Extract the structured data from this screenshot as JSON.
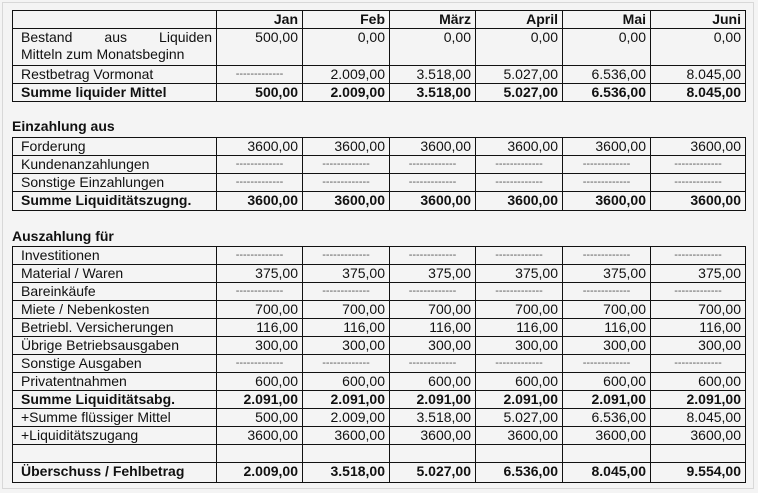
{
  "months": [
    "Jan",
    "Feb",
    "März",
    "April",
    "Mai",
    "Juni"
  ],
  "dash": "------------",
  "sections": [
    {
      "heading": "",
      "rows": [
        {
          "label": "Bestand aus Liquiden Mitteln zum Monatsbeginn",
          "label_lines": [
            "Bestand aus Liquiden",
            "Mitteln zum Monatsbeginn"
          ],
          "values": [
            "500,00",
            "0,00",
            "0,00",
            "0,00",
            "0,00",
            "0,00"
          ]
        },
        {
          "label": "Restbetrag Vormonat",
          "values": [
            "-",
            "2.009,00",
            "3.518,00",
            "5.027,00",
            "6.536,00",
            "8.045,00"
          ]
        },
        {
          "label": "Summe liquider Mittel",
          "bold": true,
          "values": [
            "500,00",
            "2.009,00",
            "3.518,00",
            "5.027,00",
            "6.536,00",
            "8.045,00"
          ]
        }
      ]
    },
    {
      "heading": "Einzahlung aus",
      "rows": [
        {
          "label": "Forderung",
          "values": [
            "3600,00",
            "3600,00",
            "3600,00",
            "3600,00",
            "3600,00",
            "3600,00"
          ]
        },
        {
          "label": "Kundenanzahlungen",
          "values": [
            "-",
            "-",
            "-",
            "-",
            "-",
            "-"
          ]
        },
        {
          "label": "Sonstige Einzahlungen",
          "values": [
            "-",
            "-",
            "-",
            "-",
            "-",
            "-"
          ]
        },
        {
          "label": "Summe Liquiditätszugng.",
          "bold": true,
          "boldvalues": false,
          "values": [
            "3600,00",
            "3600,00",
            "3600,00",
            "3600,00",
            "3600,00",
            "3600,00"
          ]
        }
      ]
    },
    {
      "heading": "Auszahlung für",
      "rows": [
        {
          "label": "Investitionen",
          "values": [
            "-",
            "-",
            "-",
            "-",
            "-",
            "-"
          ]
        },
        {
          "label": "Material / Waren",
          "values": [
            "375,00",
            "375,00",
            "375,00",
            "375,00",
            "375,00",
            "375,00"
          ]
        },
        {
          "label": "Bareinkäufe",
          "values": [
            "-",
            "-",
            "-",
            "-",
            "-",
            "-"
          ]
        },
        {
          "label": "Miete / Nebenkosten",
          "values": [
            "700,00",
            "700,00",
            "700,00",
            "700,00",
            "700,00",
            "700,00"
          ]
        },
        {
          "label": "Betriebl. Versicherungen",
          "values": [
            "116,00",
            "116,00",
            "116,00",
            "116,00",
            "116,00",
            "116,00"
          ]
        },
        {
          "label": "Übrige Betriebsausgaben",
          "values": [
            "300,00",
            "300,00",
            "300,00",
            "300,00",
            "300,00",
            "300,00"
          ]
        },
        {
          "label": "Sonstige Ausgaben",
          "values": [
            "-",
            "-",
            "-",
            "-",
            "-",
            "-"
          ]
        },
        {
          "label": "Privatentnahmen",
          "values": [
            "600,00",
            "600,00",
            "600,00",
            "600,00",
            "600,00",
            "600,00"
          ]
        },
        {
          "label": "Summe Liquiditätsabg.",
          "bold": true,
          "values": [
            "2.091,00",
            "2.091,00",
            "2.091,00",
            "2.091,00",
            "2.091,00",
            "2.091,00"
          ]
        },
        {
          "label": "+Summe flüssiger Mittel",
          "values": [
            "500,00",
            "2.009,00",
            "3.518,00",
            "5.027,00",
            "6.536,00",
            "8.045,00"
          ]
        },
        {
          "label": "+Liquiditätszugang",
          "values": [
            "3600,00",
            "3600,00",
            "3600,00",
            "3600,00",
            "3600,00",
            "3600,00"
          ]
        },
        {
          "label": "",
          "values": [
            "",
            "",
            "",
            "",
            "",
            ""
          ]
        },
        {
          "label": "Überschuss / Fehlbetrag",
          "bold": true,
          "values": [
            "2.009,00",
            "3.518,00",
            "5.027,00",
            "6.536,00",
            "8.045,00",
            "9.554,00"
          ]
        }
      ]
    }
  ]
}
